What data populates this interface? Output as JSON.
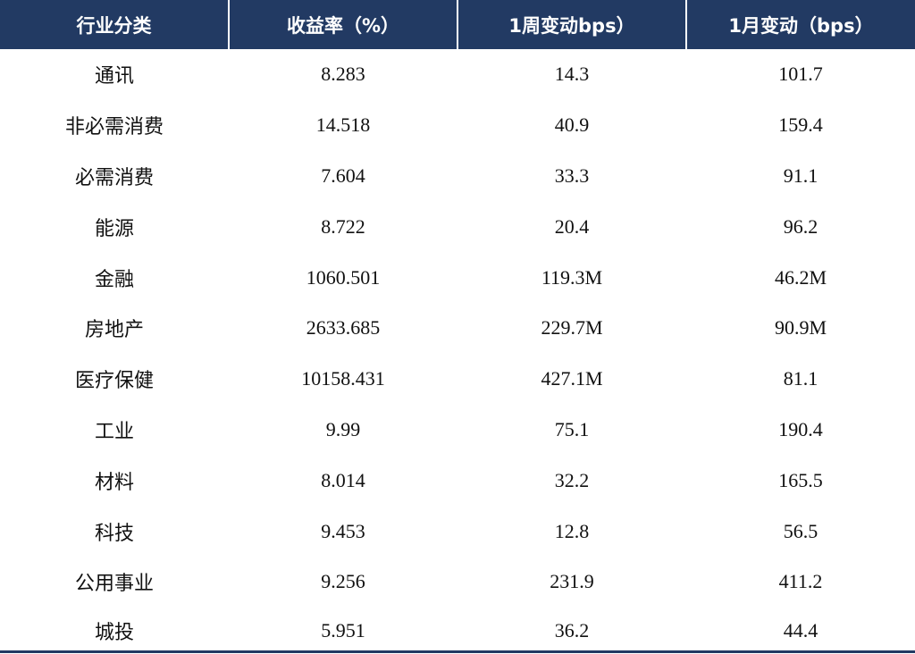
{
  "table": {
    "headers": [
      "行业分类",
      "收益率（%）",
      "1周变动bps）",
      "1月变动（bps）"
    ],
    "rows": [
      [
        "通讯",
        "8.283",
        "14.3",
        "101.7"
      ],
      [
        "非必需消费",
        "14.518",
        "40.9",
        "159.4"
      ],
      [
        "必需消费",
        "7.604",
        "33.3",
        "91.1"
      ],
      [
        "能源",
        "8.722",
        "20.4",
        "96.2"
      ],
      [
        "金融",
        "1060.501",
        "119.3M",
        "46.2M"
      ],
      [
        "房地产",
        "2633.685",
        "229.7M",
        "90.9M"
      ],
      [
        "医疗保健",
        "10158.431",
        "427.1M",
        "81.1"
      ],
      [
        "工业",
        "9.99",
        "75.1",
        "190.4"
      ],
      [
        "材料",
        "8.014",
        "32.2",
        "165.5"
      ],
      [
        "科技",
        "9.453",
        "12.8",
        "56.5"
      ],
      [
        "公用事业",
        "9.256",
        "231.9",
        "411.2"
      ],
      [
        "城投",
        "5.951",
        "36.2",
        "44.4"
      ]
    ]
  },
  "colors": {
    "header_bg": "#223a63",
    "header_text": "#ffffff",
    "body_text": "#111111"
  }
}
